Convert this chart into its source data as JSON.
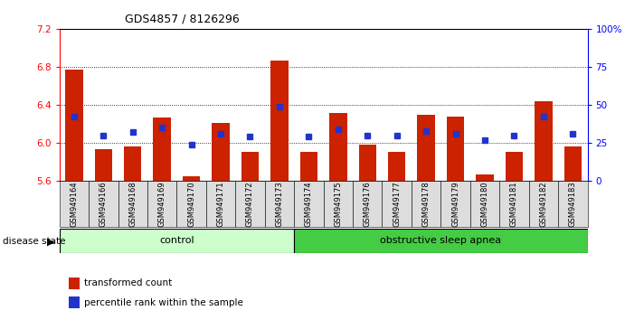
{
  "title": "GDS4857 / 8126296",
  "samples": [
    "GSM949164",
    "GSM949166",
    "GSM949168",
    "GSM949169",
    "GSM949170",
    "GSM949171",
    "GSM949172",
    "GSM949173",
    "GSM949174",
    "GSM949175",
    "GSM949176",
    "GSM949177",
    "GSM949178",
    "GSM949179",
    "GSM949180",
    "GSM949181",
    "GSM949182",
    "GSM949183"
  ],
  "red_values": [
    6.77,
    5.93,
    5.96,
    6.27,
    5.65,
    6.21,
    5.9,
    6.87,
    5.9,
    6.31,
    5.98,
    5.9,
    6.29,
    6.28,
    5.67,
    5.9,
    6.44,
    5.96
  ],
  "blue_values": [
    42,
    30,
    32,
    35,
    24,
    31,
    29,
    49,
    29,
    34,
    30,
    30,
    33,
    31,
    27,
    30,
    42,
    31
  ],
  "y_min": 5.6,
  "y_max": 7.2,
  "y_ticks": [
    5.6,
    6.0,
    6.4,
    6.8,
    7.2
  ],
  "y2_ticks": [
    0,
    25,
    50,
    75,
    100
  ],
  "control_count": 8,
  "control_label": "control",
  "apnea_label": "obstructive sleep apnea",
  "disease_state_label": "disease state",
  "legend_red": "transformed count",
  "legend_blue": "percentile rank within the sample",
  "bar_color": "#cc2200",
  "square_color": "#2233cc",
  "control_bg": "#ccffcc",
  "apnea_bg": "#44cc44",
  "tick_bg": "#dddddd"
}
